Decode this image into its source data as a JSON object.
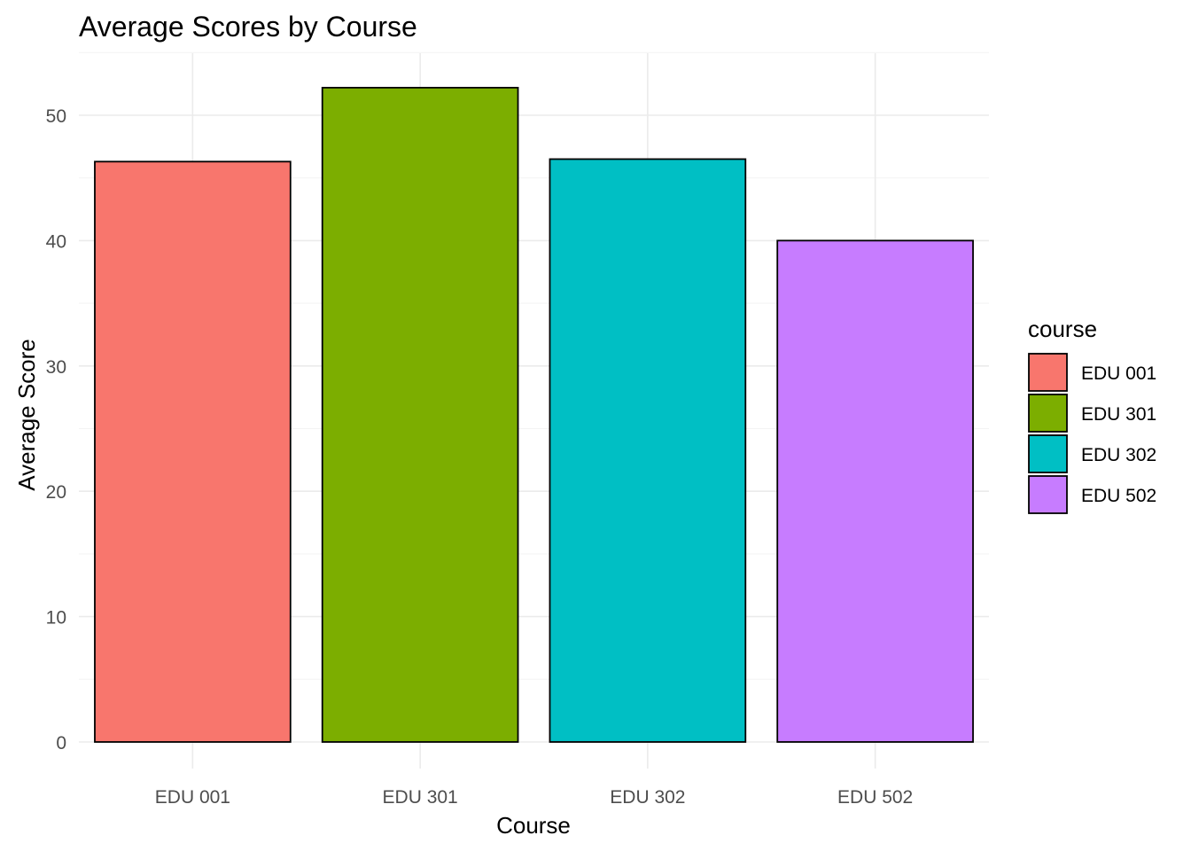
{
  "chart_data": {
    "type": "bar",
    "title": "Average Scores by Course",
    "xlabel": "Course",
    "ylabel": "Average Score",
    "categories": [
      "EDU 001",
      "EDU 301",
      "EDU 302",
      "EDU 502"
    ],
    "values": [
      46.3,
      52.2,
      46.5,
      40.0
    ],
    "colors": [
      "#F8766D",
      "#7CAE00",
      "#00BFC4",
      "#C77CFF"
    ],
    "yticks": [
      0,
      10,
      20,
      30,
      40,
      50
    ],
    "ylim": [
      0,
      55
    ],
    "grid": true,
    "legend": {
      "title": "course",
      "position": "right",
      "entries": [
        "EDU 001",
        "EDU 301",
        "EDU 302",
        "EDU 502"
      ]
    }
  }
}
